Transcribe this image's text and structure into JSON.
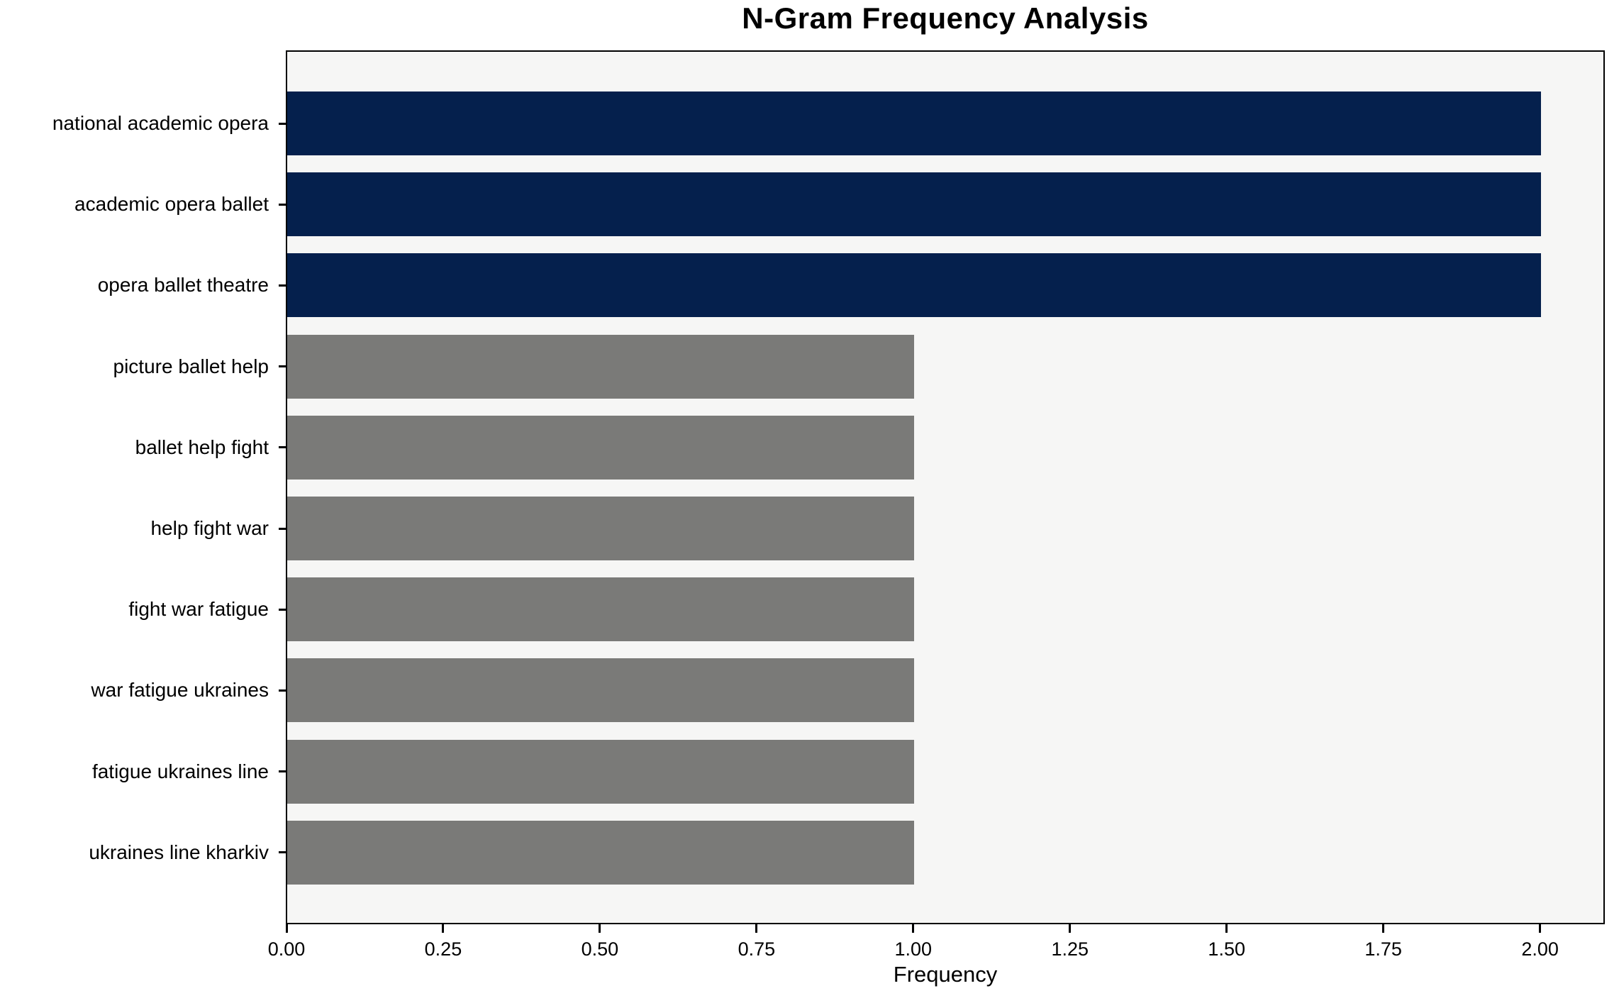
{
  "chart_data": {
    "type": "bar",
    "orientation": "horizontal",
    "title": "N-Gram Frequency Analysis",
    "xlabel": "Frequency",
    "ylabel": "",
    "categories": [
      "national academic opera",
      "academic opera ballet",
      "opera ballet theatre",
      "picture ballet help",
      "ballet help fight",
      "help fight war",
      "fight war fatigue",
      "war fatigue ukraines",
      "fatigue ukraines line",
      "ukraines line kharkiv"
    ],
    "values": [
      2,
      2,
      2,
      1,
      1,
      1,
      1,
      1,
      1,
      1
    ],
    "xlim": [
      0,
      2.1
    ],
    "xticks": [
      0.0,
      0.25,
      0.5,
      0.75,
      1.0,
      1.25,
      1.5,
      1.75,
      2.0
    ],
    "xtick_labels": [
      "0.00",
      "0.25",
      "0.50",
      "0.75",
      "1.00",
      "1.25",
      "1.50",
      "1.75",
      "2.00"
    ],
    "grid": false,
    "legend": false,
    "colors": {
      "bar_high": "#05204d",
      "bar_low": "#7a7a78",
      "plot_background": "#f6f6f5",
      "figure_background": "#ffffff",
      "axis": "#000000",
      "text": "#000000"
    }
  }
}
